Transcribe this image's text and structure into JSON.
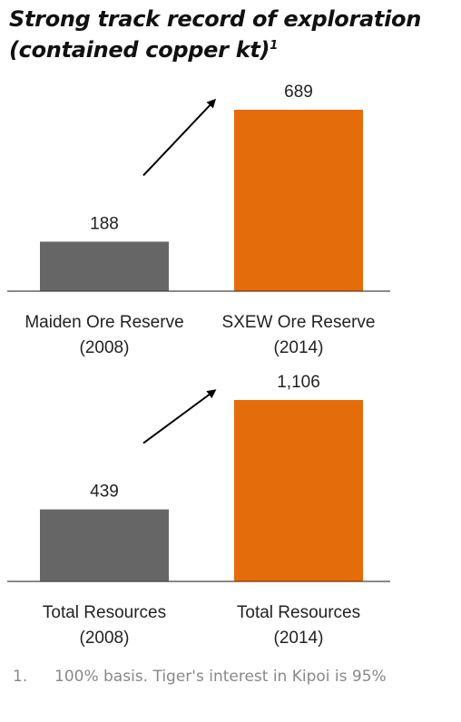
{
  "title_main": "Strong track record of exploration (contained copper kt)",
  "title_sup": "1",
  "footnote": {
    "number": "1.",
    "text": "100% basis. Tiger's interest in Kipoi is 95%"
  },
  "colors": {
    "bar_2008": "#666666",
    "bar_2014": "#E46C0A",
    "axis": "#444444"
  },
  "chart_data": [
    {
      "type": "bar",
      "categories": [
        "Maiden Ore Reserve (2008)",
        "SXEW Ore Reserve (2014)"
      ],
      "category_lines": [
        [
          "Maiden Ore Reserve",
          "(2008)"
        ],
        [
          "SXEW Ore Reserve",
          "(2014)"
        ]
      ],
      "values": [
        188,
        689
      ],
      "value_labels": [
        "188",
        "689"
      ],
      "ylim": [
        0,
        689
      ],
      "annotation": "arrow indicating growth"
    },
    {
      "type": "bar",
      "categories": [
        "Total Resources (2008)",
        "Total Resources (2014)"
      ],
      "category_lines": [
        [
          "Total Resources",
          "(2008)"
        ],
        [
          "Total Resources",
          "(2014)"
        ]
      ],
      "values": [
        439,
        1106
      ],
      "value_labels": [
        "439",
        "1,106"
      ],
      "ylim": [
        0,
        1106
      ],
      "annotation": "arrow indicating growth"
    }
  ]
}
